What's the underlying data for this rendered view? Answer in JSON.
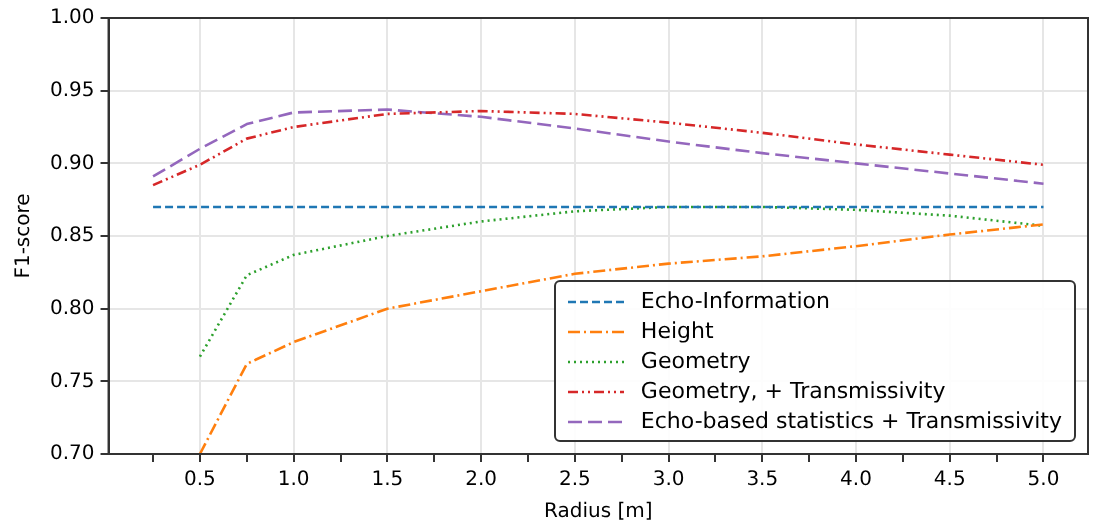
{
  "chart_data": {
    "type": "line",
    "xlabel": "Radius [m]",
    "ylabel": "F1-score",
    "x": [
      0.25,
      0.5,
      0.75,
      1.0,
      1.5,
      2.0,
      2.5,
      3.0,
      3.5,
      4.0,
      4.5,
      5.0
    ],
    "xlim": [
      0.0125,
      5.2375
    ],
    "xticks": [
      {
        "value": 0.25,
        "label": null
      },
      0.5,
      {
        "value": 0.75,
        "label": null
      },
      {
        "value": 1.0,
        "label": "1.0"
      },
      {
        "value": 1.25,
        "label": null
      },
      1.5,
      {
        "value": 1.75,
        "label": null
      },
      {
        "value": 2.0,
        "label": "2.0"
      },
      {
        "value": 2.25,
        "label": null
      },
      2.5,
      {
        "value": 2.75,
        "label": null
      },
      {
        "value": 3.0,
        "label": "3.0"
      },
      {
        "value": 3.25,
        "label": null
      },
      3.5,
      {
        "value": 3.75,
        "label": null
      },
      {
        "value": 4.0,
        "label": "4.0"
      },
      {
        "value": 4.25,
        "label": null
      },
      4.5,
      {
        "value": 4.75,
        "label": null
      },
      {
        "value": 5.0,
        "label": "5.0"
      }
    ],
    "ylim": [
      0.7,
      1.0
    ],
    "yticks": [
      {
        "value": 0.7,
        "label": "0.70"
      },
      0.75,
      {
        "value": 0.8,
        "label": "0.80"
      },
      0.85,
      {
        "value": 0.9,
        "label": "0.90"
      },
      0.95,
      {
        "value": 1.0,
        "label": "1.00"
      }
    ],
    "grid": true,
    "legend": "bottom right",
    "marker": "none",
    "series": [
      {
        "name": "Echo-Information",
        "color": "#1f77b4",
        "line_style": "dashed",
        "values": [
          0.87,
          0.87,
          0.87,
          0.87,
          0.87,
          0.87,
          0.87,
          0.87,
          0.87,
          0.87,
          0.87,
          0.87
        ]
      },
      {
        "name": "Height",
        "color": "#ff7f0e",
        "line_style": "dashdot",
        "values": [
          null,
          0.7,
          0.762,
          0.777,
          0.8,
          0.812,
          0.824,
          0.831,
          0.836,
          0.843,
          0.851,
          0.858
        ]
      },
      {
        "name": "Geometry",
        "color": "#2ca02c",
        "line_style": "dotted",
        "values": [
          null,
          0.767,
          0.823,
          0.837,
          0.85,
          0.86,
          0.867,
          0.87,
          0.87,
          0.868,
          0.864,
          0.857
        ]
      },
      {
        "name": "Geometry, + Transmissivity",
        "color": "#d62728",
        "line_style": "dashdotdot",
        "values": [
          0.885,
          0.899,
          0.917,
          0.925,
          0.934,
          0.936,
          0.934,
          0.928,
          0.921,
          0.913,
          0.906,
          0.899
        ]
      },
      {
        "name": "Echo-based statistics + Transmissivity",
        "color": "#9467bd",
        "line_style": "longdash",
        "values": [
          0.891,
          0.91,
          0.927,
          0.935,
          0.937,
          0.932,
          0.924,
          0.915,
          0.907,
          0.9,
          0.893,
          0.886
        ]
      }
    ]
  }
}
